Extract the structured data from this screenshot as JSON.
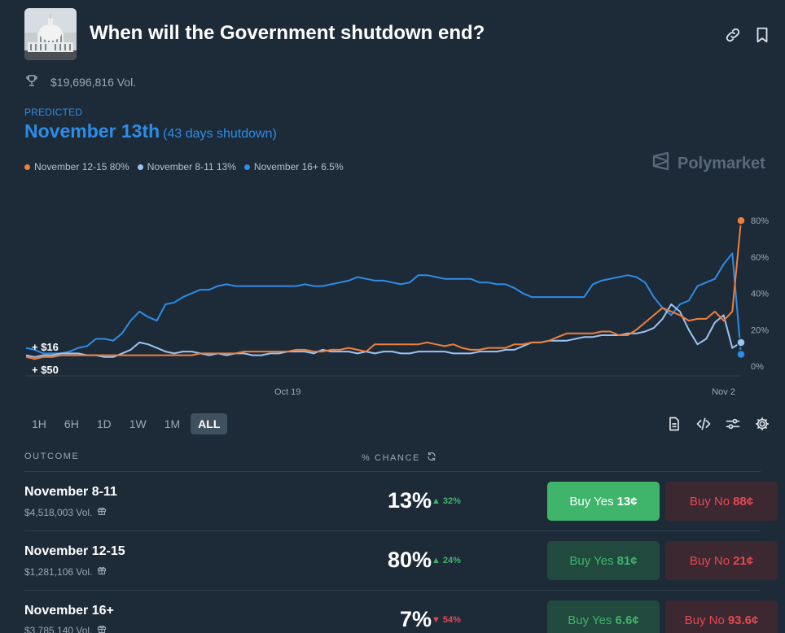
{
  "market": {
    "title": "When will the Government shutdown end?",
    "volume": "$19,696,816 Vol.",
    "icons": [
      "link-icon",
      "bookmark-icon",
      "trophy-icon"
    ]
  },
  "prediction": {
    "label": "PREDICTED",
    "value": "November 13th",
    "sub": "(43 days shutdown)"
  },
  "legend": [
    {
      "label": "November 12-15 80%",
      "color": "#f07f3a"
    },
    {
      "label": "November 8-11 13%",
      "color": "#9cc4f2"
    },
    {
      "label": "November 16+ 6.5%",
      "color": "#2e8ce6"
    }
  ],
  "brand": "Polymarket",
  "chart_data": {
    "type": "line",
    "x_ticks": [
      "Oct 19",
      "Nov 2"
    ],
    "y_ticks": [
      "0%",
      "20%",
      "40%",
      "60%",
      "80%"
    ],
    "ylim": [
      0,
      85
    ],
    "annotations": [
      "+ $16",
      "+ $50"
    ],
    "x_index_ticks": [
      30,
      80
    ],
    "series": [
      {
        "name": "November 12-15",
        "color": "#f07f3a",
        "values": [
          5,
          4,
          5,
          5,
          6,
          6,
          6,
          6,
          6,
          6,
          6,
          6,
          6,
          6,
          6,
          6,
          6,
          6,
          6,
          6,
          7,
          7,
          7,
          7,
          7,
          8,
          8,
          8,
          8,
          8,
          8,
          9,
          9,
          8,
          8,
          9,
          9,
          10,
          9,
          8,
          12,
          12,
          12,
          12,
          12,
          12,
          13,
          12,
          11,
          12,
          10,
          9,
          9,
          10,
          10,
          10,
          12,
          12,
          13,
          13,
          14,
          16,
          18,
          18,
          18,
          18,
          19,
          19,
          17,
          17,
          20,
          24,
          28,
          32,
          30,
          28,
          25,
          26,
          26,
          30,
          25,
          30,
          80
        ]
      },
      {
        "name": "November 8-11",
        "color": "#9cc4f2",
        "values": [
          6,
          5,
          6,
          6,
          7,
          7,
          7,
          6,
          6,
          5,
          5,
          7,
          9,
          13,
          12,
          10,
          8,
          7,
          8,
          8,
          7,
          6,
          7,
          6,
          7,
          7,
          6,
          6,
          7,
          7,
          8,
          8,
          8,
          7,
          9,
          8,
          8,
          8,
          7,
          8,
          7,
          8,
          8,
          7,
          7,
          8,
          8,
          8,
          8,
          7,
          7,
          7,
          8,
          8,
          8,
          9,
          9,
          11,
          13,
          13,
          14,
          14,
          14,
          15,
          16,
          16,
          17,
          17,
          17,
          18,
          18,
          19,
          21,
          26,
          34,
          30,
          20,
          12,
          15,
          24,
          28,
          10,
          13
        ]
      },
      {
        "name": "November 16+",
        "color": "#2e8ce6",
        "values": [
          10,
          9,
          7,
          7,
          7,
          8,
          10,
          11,
          15,
          15,
          14,
          18,
          25,
          30,
          27,
          25,
          34,
          35,
          38,
          40,
          42,
          42,
          44,
          45,
          44,
          44,
          44,
          44,
          44,
          44,
          44,
          44,
          45,
          44,
          44,
          45,
          46,
          47,
          49,
          48,
          47,
          47,
          46,
          45,
          46,
          50,
          50,
          49,
          48,
          48,
          48,
          48,
          46,
          46,
          45,
          45,
          43,
          40,
          38,
          38,
          38,
          38,
          38,
          38,
          38,
          45,
          47,
          48,
          49,
          50,
          49,
          46,
          38,
          32,
          28,
          34,
          36,
          44,
          46,
          48,
          56,
          62,
          6.5
        ]
      }
    ]
  },
  "ranges": [
    {
      "label": "1H"
    },
    {
      "label": "6H"
    },
    {
      "label": "1D"
    },
    {
      "label": "1W"
    },
    {
      "label": "1M"
    },
    {
      "label": "ALL",
      "active": true
    }
  ],
  "toolbar_icons": [
    "document-icon",
    "code-icon",
    "sliders-icon",
    "gear-icon"
  ],
  "table": {
    "col_outcome": "OUTCOME",
    "col_chance": "% CHANCE",
    "rows": [
      {
        "name": "November 8-11",
        "volume": "$4,518,003 Vol.",
        "chance": "13%",
        "delta": "32%",
        "delta_dir": "up",
        "yes_label": "Buy Yes",
        "yes_price": "13¢",
        "no_label": "Buy No",
        "no_price": "88¢",
        "yes_active": true
      },
      {
        "name": "November 12-15",
        "volume": "$1,281,106 Vol.",
        "chance": "80%",
        "delta": "24%",
        "delta_dir": "up",
        "yes_label": "Buy Yes",
        "yes_price": "81¢",
        "no_label": "Buy No",
        "no_price": "21¢",
        "yes_active": false
      },
      {
        "name": "November 16+",
        "volume": "$3,785,140 Vol.",
        "chance": "7%",
        "delta": "54%",
        "delta_dir": "down",
        "yes_label": "Buy Yes",
        "yes_price": "6.6¢",
        "no_label": "Buy No",
        "no_price": "93.6¢",
        "yes_active": false
      }
    ]
  }
}
